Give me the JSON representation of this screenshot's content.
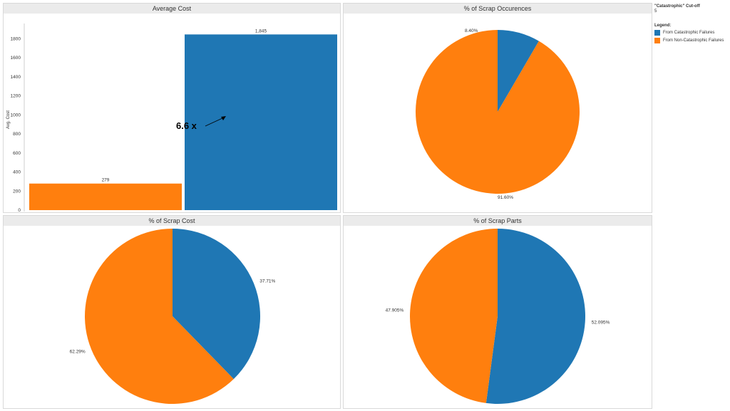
{
  "colors": {
    "catastrophic": "#1f77b4",
    "non_catastrophic": "#ff7f0e"
  },
  "sidebar": {
    "cutoff_title": "\"Catastrophic\" Cut-off",
    "cutoff_value": "5",
    "legend_title": "Legend:",
    "legend_items": [
      {
        "label": "From Catastrophic Failures",
        "color": "#1f77b4"
      },
      {
        "label": "From Non-Catastrophic Failures",
        "color": "#ff7f0e"
      }
    ]
  },
  "chart_data": [
    {
      "type": "bar",
      "title": "Average Cost",
      "ylabel": "Avg. Cost",
      "categories": [
        "From Non-Catastrophic Failures",
        "From Catastrophic Failures"
      ],
      "values": [
        279,
        1845
      ],
      "value_labels": [
        "279",
        "1,845"
      ],
      "colors": [
        "#ff7f0e",
        "#1f77b4"
      ],
      "ylim": [
        0,
        1900
      ],
      "yticks": [
        0,
        200,
        400,
        600,
        800,
        1000,
        1200,
        1400,
        1600,
        1800
      ],
      "annotation": "6.6 x"
    },
    {
      "type": "pie",
      "title": "% of Scrap Occurences",
      "slices": [
        {
          "name": "From Catastrophic Failures",
          "value": 8.4,
          "label": "8.40%",
          "color": "#1f77b4"
        },
        {
          "name": "From Non-Catastrophic Failures",
          "value": 91.6,
          "label": "91.60%",
          "color": "#ff7f0e"
        }
      ]
    },
    {
      "type": "pie",
      "title": "% of Scrap Cost",
      "slices": [
        {
          "name": "From Catastrophic Failures",
          "value": 37.71,
          "label": "37.71%",
          "color": "#1f77b4"
        },
        {
          "name": "From Non-Catastrophic Failures",
          "value": 62.29,
          "label": "62.29%",
          "color": "#ff7f0e"
        }
      ]
    },
    {
      "type": "pie",
      "title": "% of Scrap Parts",
      "slices": [
        {
          "name": "From Catastrophic Failures",
          "value": 52.095,
          "label": "52.095%",
          "color": "#1f77b4"
        },
        {
          "name": "From Non-Catastrophic Failures",
          "value": 47.905,
          "label": "47.905%",
          "color": "#ff7f0e"
        }
      ]
    }
  ]
}
